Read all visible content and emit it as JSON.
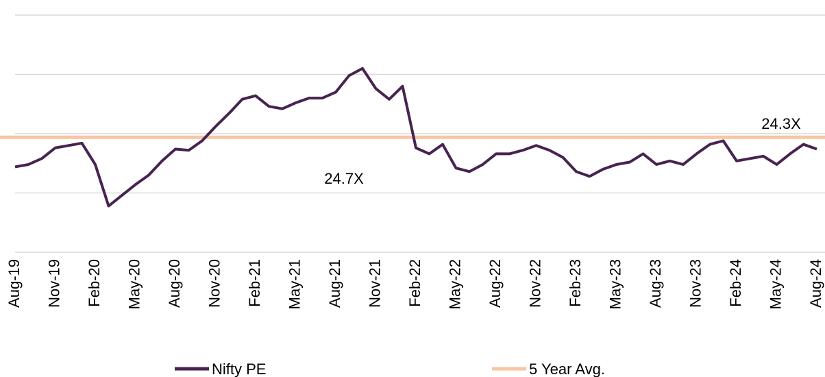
{
  "chart_data": {
    "type": "line",
    "categories": [
      "Aug-19",
      null,
      null,
      "Nov-19",
      null,
      null,
      "Feb-20",
      null,
      null,
      "May-20",
      null,
      null,
      "Aug-20",
      null,
      null,
      "Nov-20",
      null,
      null,
      "Feb-21",
      null,
      null,
      "May-21",
      null,
      null,
      "Aug-21",
      null,
      null,
      "Nov-21",
      null,
      null,
      "Feb-22",
      null,
      null,
      "May-22",
      null,
      null,
      "Aug-22",
      null,
      null,
      "Nov-22",
      null,
      null,
      "Feb-23",
      null,
      null,
      "May-23",
      null,
      null,
      "Aug-23",
      null,
      null,
      "Nov-23",
      null,
      null,
      "Feb-24",
      null,
      null,
      "May-24",
      null,
      null,
      "Aug-24"
    ],
    "series": [
      {
        "name": "Nifty PE",
        "color": "#47234f",
        "values": [
          22.2,
          22.4,
          22.9,
          23.8,
          24.0,
          24.2,
          22.4,
          18.9,
          19.8,
          20.7,
          21.5,
          22.7,
          23.7,
          23.6,
          24.4,
          25.6,
          26.7,
          27.9,
          28.2,
          27.3,
          27.1,
          27.6,
          28.0,
          28.0,
          28.5,
          29.9,
          30.5,
          28.8,
          27.9,
          29.0,
          23.8,
          23.3,
          24.1,
          22.1,
          21.8,
          22.4,
          23.3,
          23.3,
          23.6,
          24.0,
          23.6,
          23.0,
          21.8,
          21.4,
          22.0,
          22.4,
          22.6,
          23.3,
          22.4,
          22.7,
          22.4,
          23.3,
          24.1,
          24.4,
          22.7,
          22.9,
          23.1,
          22.4,
          23.3,
          24.1,
          23.7
        ]
      },
      {
        "name": "5 Year Avg.",
        "color": "#f9c5a3",
        "value": 24.7
      }
    ],
    "annotations": [
      "24.3X",
      "24.7X"
    ],
    "ylim": [
      15,
      35
    ],
    "yticks": [
      15,
      20,
      25,
      30,
      35
    ],
    "grid": true
  }
}
